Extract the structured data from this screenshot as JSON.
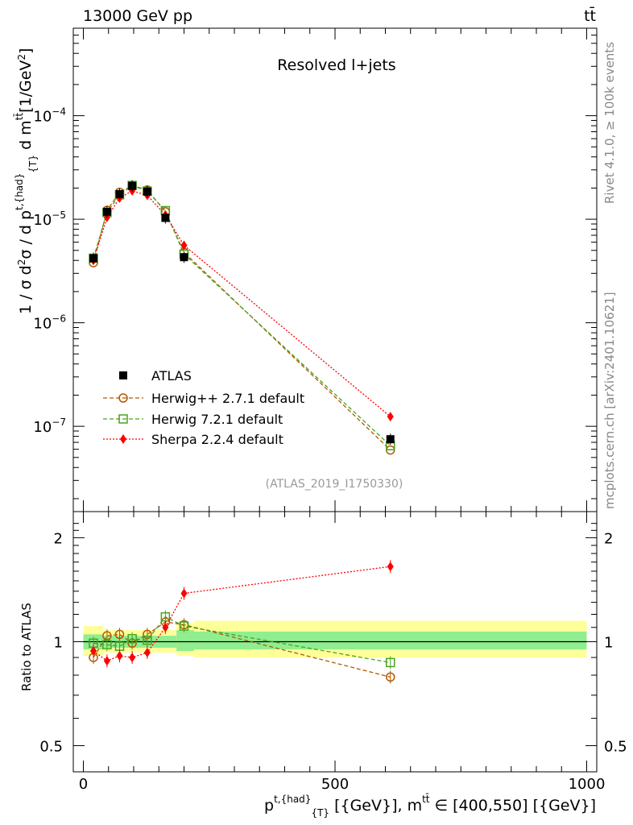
{
  "header": {
    "left": "13000 GeV pp",
    "right": "tt̄"
  },
  "side_labels": {
    "rivet": "Rivet 4.1.0, ≥ 100k events",
    "mcplots": "mcplots.cern.ch [arXiv:2401.10621]"
  },
  "watermark": "(ATLAS_2019_I1750330)",
  "plot_title": "Resolved l+jets",
  "colors": {
    "atlas": "#000000",
    "herwigpp": "#b35900",
    "herwig7": "#4aa21e",
    "sherpa": "#ff0000",
    "band_inner": "#90ee90",
    "band_outer": "#ffff99"
  },
  "chart_data": [
    {
      "type": "line",
      "title": "Resolved l+jets",
      "ylabel": "1 / σ d²σ / d p^{t,{had}}_{T} d m^{tt̄} [1/GeV²]",
      "yscale": "log",
      "ylim": [
        1.5e-08,
        0.0007
      ],
      "xlim": [
        -20,
        1020
      ],
      "ytick_labels": [
        {
          "mant": "10",
          "exp": "−7"
        },
        {
          "mant": "10",
          "exp": "−6"
        },
        {
          "mant": "10",
          "exp": "−5"
        },
        {
          "mant": "10",
          "exp": "−4"
        }
      ],
      "series": [
        {
          "name": "ATLAS",
          "style": "data",
          "x": [
            20,
            47,
            72,
            97,
            127,
            163,
            200,
            610
          ],
          "y": [
            4.2e-06,
            1.18e-05,
            1.75e-05,
            2.1e-05,
            1.85e-05,
            1.03e-05,
            4.3e-06,
            7.5e-08
          ]
        },
        {
          "name": "Herwig++ 2.7.1 default",
          "style": "circle",
          "x": [
            20,
            47,
            72,
            97,
            127,
            163,
            200,
            610
          ],
          "y": [
            3.8e-06,
            1.22e-05,
            1.82e-05,
            2.12e-05,
            1.92e-05,
            1.18e-05,
            4.8e-06,
            5.9e-08
          ]
        },
        {
          "name": "Herwig 7.2.1 default",
          "style": "square",
          "x": [
            20,
            47,
            72,
            97,
            127,
            163,
            200,
            610
          ],
          "y": [
            4.2e-06,
            1.16e-05,
            1.72e-05,
            2.12e-05,
            1.87e-05,
            1.21e-05,
            4.6e-06,
            6.5e-08
          ]
        },
        {
          "name": "Sherpa 2.2.4 default",
          "style": "diamond",
          "x": [
            20,
            47,
            72,
            97,
            127,
            163,
            200,
            610
          ],
          "y": [
            4e-06,
            1.04e-05,
            1.6e-05,
            1.88e-05,
            1.7e-05,
            1.1e-05,
            5.6e-06,
            1.24e-07
          ]
        }
      ]
    },
    {
      "type": "line",
      "ylabel": "Ratio to ATLAS",
      "yscale": "log",
      "ylim": [
        0.42,
        2.38
      ],
      "xlim": [
        -20,
        1020
      ],
      "xlabel": "p^{t,{had}}_{T} [{GeV}], m^{tt̄} ∈ [400,550] [{GeV}]",
      "xticks": [
        "0",
        "500",
        "1000"
      ],
      "yticks": [
        "0.5",
        "1",
        "2"
      ],
      "bands": [
        {
          "x": [
            0,
            40
          ],
          "inner": [
            0.95,
            1.05
          ],
          "outer": [
            0.91,
            1.11
          ]
        },
        {
          "x": [
            40,
            185
          ],
          "inner": [
            0.96,
            1.04
          ],
          "outer": [
            0.93,
            1.08
          ]
        },
        {
          "x": [
            185,
            220
          ],
          "inner": [
            0.94,
            1.08
          ],
          "outer": [
            0.91,
            1.13
          ]
        },
        {
          "x": [
            220,
            1000
          ],
          "inner": [
            0.95,
            1.07
          ],
          "outer": [
            0.9,
            1.15
          ]
        }
      ],
      "series": [
        {
          "name": "Herwig++ 2.7.1 default",
          "style": "circle",
          "x": [
            20,
            47,
            72,
            97,
            127,
            163,
            200,
            610
          ],
          "y": [
            0.9,
            1.04,
            1.05,
            0.99,
            1.05,
            1.14,
            1.12,
            0.79
          ]
        },
        {
          "name": "Herwig 7.2.1 default",
          "style": "square",
          "x": [
            20,
            47,
            72,
            97,
            127,
            163,
            200,
            610
          ],
          "y": [
            0.99,
            0.98,
            0.97,
            1.02,
            1.01,
            1.18,
            1.11,
            0.87
          ]
        },
        {
          "name": "Sherpa 2.2.4 default",
          "style": "diamond",
          "x": [
            20,
            47,
            72,
            97,
            127,
            163,
            200,
            610
          ],
          "y": [
            0.94,
            0.88,
            0.91,
            0.9,
            0.93,
            1.1,
            1.38,
            1.65
          ]
        }
      ]
    }
  ]
}
